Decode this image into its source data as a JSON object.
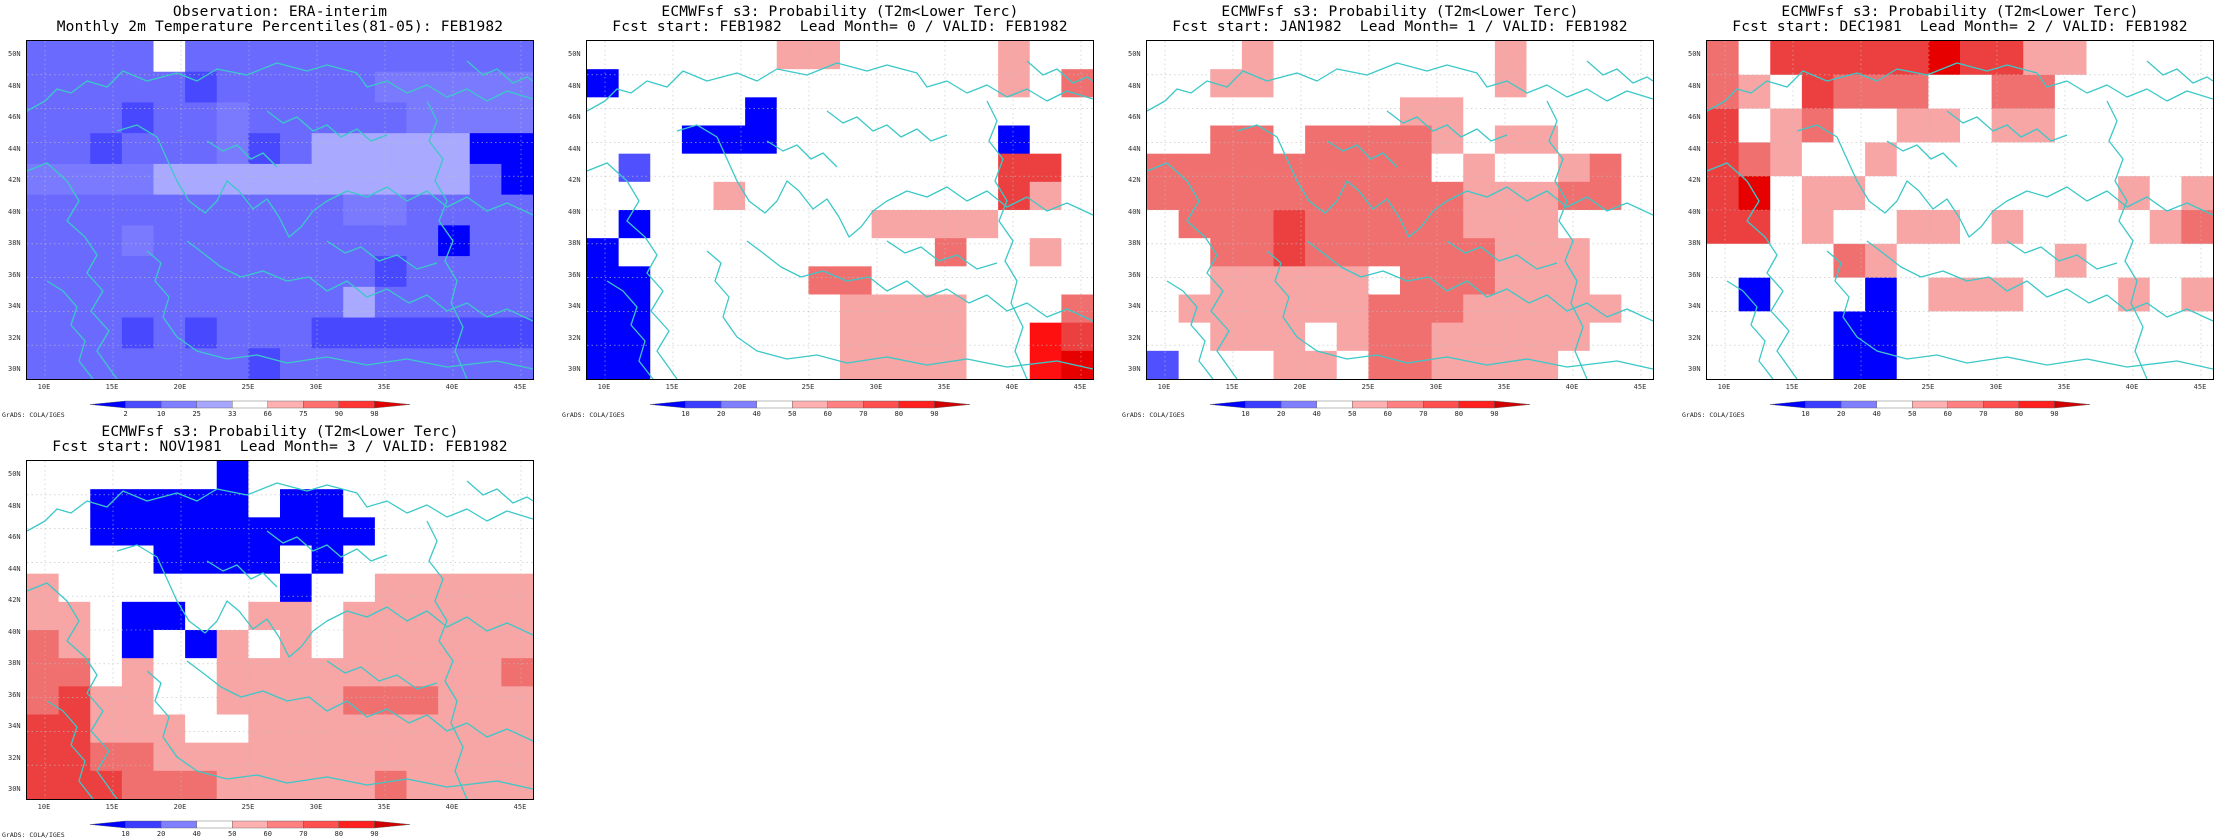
{
  "panels": [
    {
      "id": "obs",
      "title1": "Observation: ERA-interim",
      "title2": "Monthly 2m Temperature Percentiles(81-05): FEB1982",
      "colorbar": {
        "labels": [
          "2",
          "10",
          "25",
          "33",
          "66",
          "75",
          "90",
          "98"
        ],
        "colors": [
          "#0000ff",
          "#4b4bff",
          "#7f7fff",
          "#a7a7ff",
          "#ffffff",
          "#ffb0b0",
          "#ff7070",
          "#ff3535",
          "#e00000"
        ]
      }
    },
    {
      "id": "lead0",
      "title1": "ECMWFsf s3: Probability (T2m<Lower Terc)",
      "title2": "Fcst start: FEB1982  Lead Month= 0 / VALID: FEB1982",
      "colorbar": {
        "labels": [
          "10",
          "20",
          "40",
          "50",
          "60",
          "70",
          "80",
          "90"
        ],
        "colors": [
          "#0000ff",
          "#3c3cff",
          "#8080ff",
          "#ffffff",
          "#ffb0b0",
          "#ff8080",
          "#ff5050",
          "#ff2020",
          "#d00000"
        ]
      }
    },
    {
      "id": "lead1",
      "title1": "ECMWFsf s3: Probability (T2m<Lower Terc)",
      "title2": "Fcst start: JAN1982  Lead Month= 1 / VALID: FEB1982",
      "colorbar": {
        "labels": [
          "10",
          "20",
          "40",
          "50",
          "60",
          "70",
          "80",
          "90"
        ],
        "colors": [
          "#0000ff",
          "#3c3cff",
          "#8080ff",
          "#ffffff",
          "#ffb0b0",
          "#ff8080",
          "#ff5050",
          "#ff2020",
          "#d00000"
        ]
      }
    },
    {
      "id": "lead2",
      "title1": "ECMWFsf s3: Probability (T2m<Lower Terc)",
      "title2": "Fcst start: DEC1981  Lead Month= 2 / VALID: FEB1982",
      "colorbar": {
        "labels": [
          "10",
          "20",
          "40",
          "50",
          "60",
          "70",
          "80",
          "90"
        ],
        "colors": [
          "#0000ff",
          "#3c3cff",
          "#8080ff",
          "#ffffff",
          "#ffb0b0",
          "#ff8080",
          "#ff5050",
          "#ff2020",
          "#d00000"
        ]
      }
    },
    {
      "id": "lead3",
      "title1": "ECMWFsf s3: Probability (T2m<Lower Terc)",
      "title2": "Fcst start: NOV1981  Lead Month= 3 / VALID: FEB1982",
      "colorbar": {
        "labels": [
          "10",
          "20",
          "40",
          "50",
          "60",
          "70",
          "80",
          "90"
        ],
        "colors": [
          "#0000ff",
          "#3c3cff",
          "#8080ff",
          "#ffffff",
          "#ffb0b0",
          "#ff8080",
          "#ff5050",
          "#ff2020",
          "#d00000"
        ]
      }
    }
  ],
  "axes": {
    "lat_labels": [
      "50N",
      "48N",
      "46N",
      "44N",
      "42N",
      "40N",
      "38N",
      "36N",
      "34N",
      "32N",
      "30N"
    ],
    "lon_labels": [
      "10E",
      "15E",
      "20E",
      "25E",
      "30E",
      "35E",
      "40E",
      "45E"
    ]
  },
  "credit": "GrADS: COLA/IGES",
  "colors": {
    "coast": "#3cc8c8",
    "grid": "#bdbdbd"
  },
  "grids": {
    "obs": [
      "....5...........",
      ".....1.....22222",
      "...1..2.....2222",
      "..1...21.3333300",
      "22223333333333.0",
      "..........22....",
      "...2.........0..",
      "...........1....",
      "..........3.....",
      "...1.1...1111111",
      ".......1........"
    ],
    "lead0": [
      "......aa.....a..",
      "0............a.b",
      ".....0.........",
      "...000.......0..",
      ".1...........cc.",
      "....a........ca.",
      ".0.......aaaa...",
      "0..........b..a.",
      "00.....bb.......",
      "00......aaaa...b",
      "00......aaaa..ec",
      "00......aaaa..ed"
    ],
    "lead1": [
      "...a.......a....",
      "..aa.......a....",
      "........aa......",
      "..bb.bbbba.aa...",
      "bbbbbbbbb.a..ab.",
      "bbbbbbbbbbaaabb.",
      ".bbbcbbbbbaaa..",
      "..bbcbbbbbbaaa..",
      "..aaaaa.bbbaaa..",
      ".aaaaaabbbaaaaa.",
      "..aaa.abbaaaaa..",
      "1...aa.bbaaaa..."
    ],
    "lead2": [
      "b.cccccdccaa....",
      "ba.cbbb..bb.....",
      "c.ab..aa.aa.....",
      "cba..a..........",
      "cd.aa........a.a",
      "cc.a..aa.a....ab",
      "....ba.....a....",
      ".0...0.aaa...a.a",
      "....00..........",
      "....00.........."
    ],
    "lead3": [
      "......0.........",
      "..00000.00......",
      "..000000000.....",
      "....0000.0......",
      "a.......0..aaaaa",
      "aa.00..aa.aaaaaa",
      "ba.0.0a.a.aaaaaa",
      "bb.a..aaaaaaaaab",
      "bcaa..aaaabbbaaa",
      "ccaaa..aaaaaaaaa",
      "ccbbaaaaaaaaaaaa",
      "cccbbbaaaaabaaaa"
    ]
  }
}
